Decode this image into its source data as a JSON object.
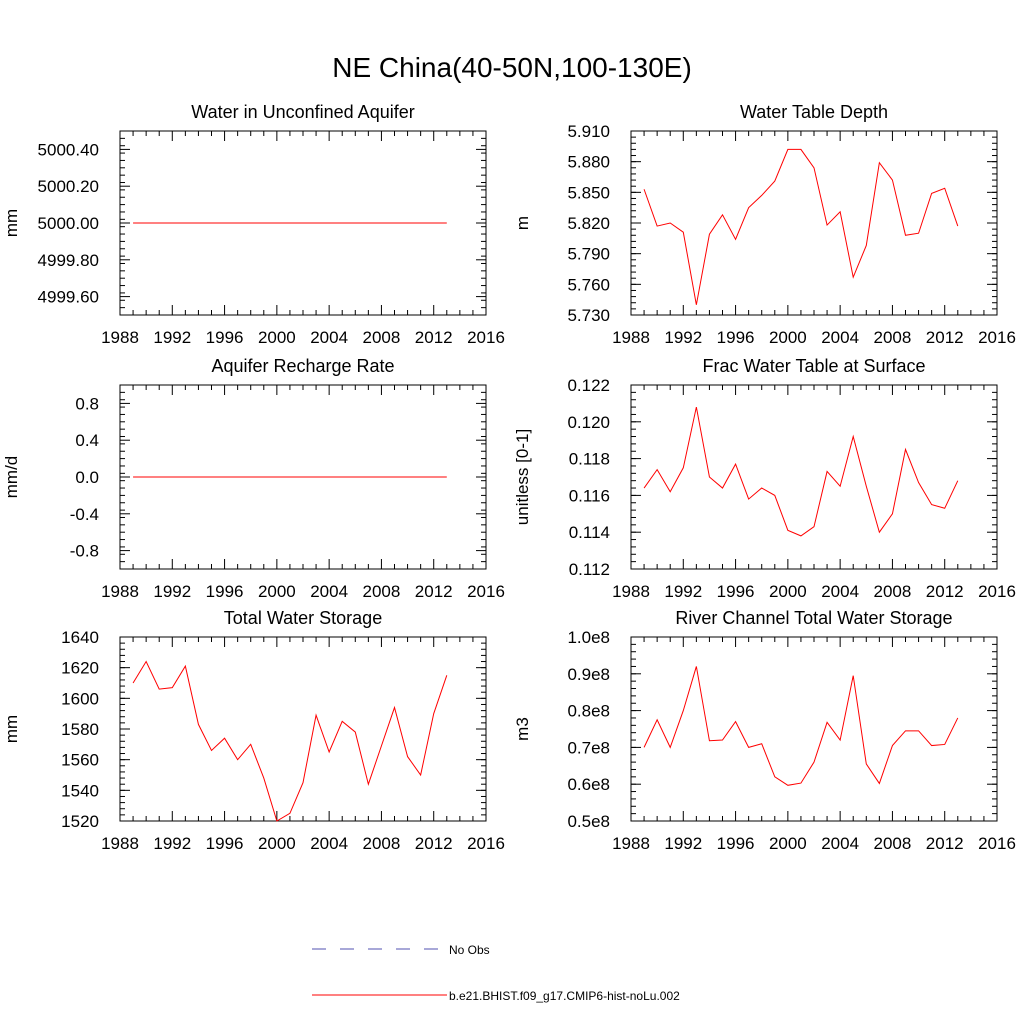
{
  "title": "NE China(40-50N,100-130E)",
  "legend": {
    "entries": [
      {
        "label": "No Obs",
        "color": "#5050b0",
        "style": "dashed"
      },
      {
        "label": "b.e21.BHIST.f09_g17.CMIP6-hist-noLu.002",
        "color": "#ff0000",
        "style": "solid"
      }
    ]
  },
  "chart_data": [
    {
      "type": "line",
      "title": "Water in Unconfined Aquifer",
      "ylabel": "mm",
      "xlim": [
        1988,
        2016
      ],
      "ylim": [
        4999.5,
        5000.5
      ],
      "xticks": [
        1988,
        1992,
        1996,
        2000,
        2004,
        2008,
        2012,
        2016
      ],
      "xtick_labels": [
        "1988",
        "1992",
        "1996",
        "2000",
        "2004",
        "2008",
        "2012",
        "2016"
      ],
      "yticks": [
        4999.6,
        4999.8,
        5000.0,
        5000.2,
        5000.4
      ],
      "ytick_labels": [
        "4999.60",
        "4999.80",
        "5000.00",
        "5000.20",
        "5000.40"
      ],
      "series": [
        {
          "name": "b.e21.BHIST.f09_g17.CMIP6-hist-noLu.002",
          "color": "#ff0000",
          "x": [
            1989,
            1990,
            1991,
            1992,
            1993,
            1994,
            1995,
            1996,
            1997,
            1998,
            1999,
            2000,
            2001,
            2002,
            2003,
            2004,
            2005,
            2006,
            2007,
            2008,
            2009,
            2010,
            2011,
            2012,
            2013
          ],
          "y": [
            5000,
            5000,
            5000,
            5000,
            5000,
            5000,
            5000,
            5000,
            5000,
            5000,
            5000,
            5000,
            5000,
            5000,
            5000,
            5000,
            5000,
            5000,
            5000,
            5000,
            5000,
            5000,
            5000,
            5000,
            5000
          ]
        }
      ]
    },
    {
      "type": "line",
      "title": "Water Table Depth",
      "ylabel": "m",
      "xlim": [
        1988,
        2016
      ],
      "ylim": [
        5.73,
        5.91
      ],
      "xticks": [
        1988,
        1992,
        1996,
        2000,
        2004,
        2008,
        2012,
        2016
      ],
      "xtick_labels": [
        "1988",
        "1992",
        "1996",
        "2000",
        "2004",
        "2008",
        "2012",
        "2016"
      ],
      "yticks": [
        5.73,
        5.76,
        5.79,
        5.82,
        5.85,
        5.88,
        5.91
      ],
      "ytick_labels": [
        "5.730",
        "5.760",
        "5.790",
        "5.820",
        "5.850",
        "5.880",
        "5.910"
      ],
      "series": [
        {
          "name": "b.e21.BHIST.f09_g17.CMIP6-hist-noLu.002",
          "color": "#ff0000",
          "x": [
            1989,
            1990,
            1991,
            1992,
            1993,
            1994,
            1995,
            1996,
            1997,
            1998,
            1999,
            2000,
            2001,
            2002,
            2003,
            2004,
            2005,
            2006,
            2007,
            2008,
            2009,
            2010,
            2011,
            2012,
            2013
          ],
          "y": [
            5.853,
            5.817,
            5.82,
            5.811,
            5.74,
            5.809,
            5.828,
            5.804,
            5.835,
            5.847,
            5.861,
            5.892,
            5.892,
            5.874,
            5.818,
            5.831,
            5.767,
            5.798,
            5.879,
            5.862,
            5.808,
            5.81,
            5.849,
            5.854,
            5.817
          ]
        }
      ]
    },
    {
      "type": "line",
      "title": "Aquifer Recharge Rate",
      "ylabel": "mm/d",
      "xlim": [
        1988,
        2016
      ],
      "ylim": [
        -1.0,
        1.0
      ],
      "xticks": [
        1988,
        1992,
        1996,
        2000,
        2004,
        2008,
        2012,
        2016
      ],
      "xtick_labels": [
        "1988",
        "1992",
        "1996",
        "2000",
        "2004",
        "2008",
        "2012",
        "2016"
      ],
      "yticks": [
        -0.8,
        -0.4,
        0.0,
        0.4,
        0.8
      ],
      "ytick_labels": [
        "-0.8",
        "-0.4",
        "0.0",
        "0.4",
        "0.8"
      ],
      "series": [
        {
          "name": "b.e21.BHIST.f09_g17.CMIP6-hist-noLu.002",
          "color": "#ff0000",
          "x": [
            1989,
            1990,
            1991,
            1992,
            1993,
            1994,
            1995,
            1996,
            1997,
            1998,
            1999,
            2000,
            2001,
            2002,
            2003,
            2004,
            2005,
            2006,
            2007,
            2008,
            2009,
            2010,
            2011,
            2012,
            2013
          ],
          "y": [
            0,
            0,
            0,
            0,
            0,
            0,
            0,
            0,
            0,
            0,
            0,
            0,
            0,
            0,
            0,
            0,
            0,
            0,
            0,
            0,
            0,
            0,
            0,
            0,
            0
          ]
        }
      ]
    },
    {
      "type": "line",
      "title": "Frac Water Table at Surface",
      "ylabel": "unitless [0-1]",
      "xlim": [
        1988,
        2016
      ],
      "ylim": [
        0.112,
        0.122
      ],
      "xticks": [
        1988,
        1992,
        1996,
        2000,
        2004,
        2008,
        2012,
        2016
      ],
      "xtick_labels": [
        "1988",
        "1992",
        "1996",
        "2000",
        "2004",
        "2008",
        "2012",
        "2016"
      ],
      "yticks": [
        0.112,
        0.114,
        0.116,
        0.118,
        0.12,
        0.122
      ],
      "ytick_labels": [
        "0.112",
        "0.114",
        "0.116",
        "0.118",
        "0.120",
        "0.122"
      ],
      "series": [
        {
          "name": "b.e21.BHIST.f09_g17.CMIP6-hist-noLu.002",
          "color": "#ff0000",
          "x": [
            1989,
            1990,
            1991,
            1992,
            1993,
            1994,
            1995,
            1996,
            1997,
            1998,
            1999,
            2000,
            2001,
            2002,
            2003,
            2004,
            2005,
            2006,
            2007,
            2008,
            2009,
            2010,
            2011,
            2012,
            2013
          ],
          "y": [
            0.1164,
            0.1174,
            0.1162,
            0.1175,
            0.1208,
            0.117,
            0.1164,
            0.1177,
            0.1158,
            0.1164,
            0.116,
            0.1141,
            0.1138,
            0.1143,
            0.1173,
            0.1165,
            0.1192,
            0.1165,
            0.114,
            0.115,
            0.1185,
            0.1167,
            0.1155,
            0.1153,
            0.1168
          ]
        }
      ]
    },
    {
      "type": "line",
      "title": "Total Water Storage",
      "ylabel": "mm",
      "xlim": [
        1988,
        2016
      ],
      "ylim": [
        1520,
        1640
      ],
      "xticks": [
        1988,
        1992,
        1996,
        2000,
        2004,
        2008,
        2012,
        2016
      ],
      "xtick_labels": [
        "1988",
        "1992",
        "1996",
        "2000",
        "2004",
        "2008",
        "2012",
        "2016"
      ],
      "yticks": [
        1520,
        1540,
        1560,
        1580,
        1600,
        1620,
        1640
      ],
      "ytick_labels": [
        "1520",
        "1540",
        "1560",
        "1580",
        "1600",
        "1620",
        "1640"
      ],
      "series": [
        {
          "name": "b.e21.BHIST.f09_g17.CMIP6-hist-noLu.002",
          "color": "#ff0000",
          "x": [
            1989,
            1990,
            1991,
            1992,
            1993,
            1994,
            1995,
            1996,
            1997,
            1998,
            1999,
            2000,
            2001,
            2002,
            2003,
            2004,
            2005,
            2006,
            2007,
            2008,
            2009,
            2010,
            2011,
            2012,
            2013
          ],
          "y": [
            1610,
            1624,
            1606,
            1607,
            1621,
            1583,
            1566,
            1574,
            1560,
            1570,
            1548,
            1520,
            1525,
            1545,
            1589,
            1565,
            1585,
            1578,
            1544,
            1569,
            1594,
            1562,
            1550,
            1590,
            1615
          ]
        }
      ]
    },
    {
      "type": "line",
      "title": "River Channel Total Water Storage",
      "ylabel": "m3",
      "xlim": [
        1988,
        2016
      ],
      "ylim": [
        50000000.0,
        100000000.0
      ],
      "xticks": [
        1988,
        1992,
        1996,
        2000,
        2004,
        2008,
        2012,
        2016
      ],
      "xtick_labels": [
        "1988",
        "1992",
        "1996",
        "2000",
        "2004",
        "2008",
        "2012",
        "2016"
      ],
      "yticks": [
        50000000.0,
        60000000.0,
        70000000.0,
        80000000.0,
        90000000.0,
        100000000.0
      ],
      "ytick_labels": [
        "0.5e8",
        "0.6e8",
        "0.7e8",
        "0.8e8",
        "0.9e8",
        "1.0e8"
      ],
      "series": [
        {
          "name": "b.e21.BHIST.f09_g17.CMIP6-hist-noLu.002",
          "color": "#ff0000",
          "x": [
            1989,
            1990,
            1991,
            1992,
            1993,
            1994,
            1995,
            1996,
            1997,
            1998,
            1999,
            2000,
            2001,
            2002,
            2003,
            2004,
            2005,
            2006,
            2007,
            2008,
            2009,
            2010,
            2011,
            2012,
            2013
          ],
          "y": [
            70000000.0,
            77500000.0,
            70000000.0,
            80000000.0,
            92000000.0,
            71800000.0,
            72000000.0,
            77000000.0,
            70000000.0,
            71000000.0,
            62000000.0,
            59700000.0,
            60300000.0,
            66000000.0,
            76800000.0,
            72000000.0,
            89500000.0,
            65500000.0,
            60200000.0,
            70500000.0,
            74500000.0,
            74500000.0,
            70500000.0,
            70800000.0,
            78000000.0
          ]
        }
      ]
    }
  ]
}
